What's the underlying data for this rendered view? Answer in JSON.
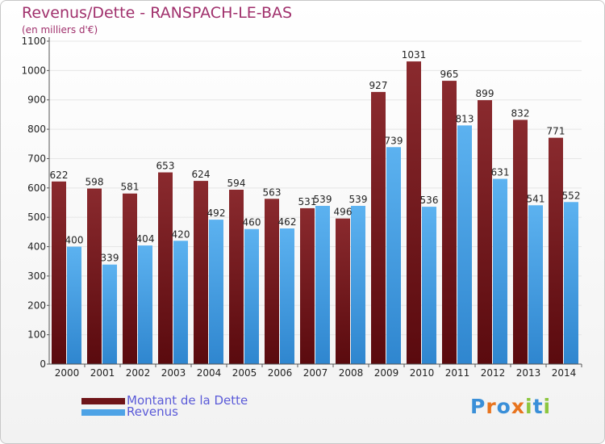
{
  "title": "Revenus/Dette - RANSPACH-LE-BAS",
  "subtitle": "(en milliers d'€)",
  "colors": {
    "dette": "#7a1b1f",
    "revenus": "#4ea3e6",
    "axis_text": "#222222",
    "grid": "#e6e6e6",
    "title": "#a0306c",
    "legend_text": "#5a5ad8"
  },
  "legend": [
    {
      "label": "Montant de la Dette",
      "color": "#6e1418"
    },
    {
      "label": "Revenus",
      "color": "#4ea3e6"
    }
  ],
  "logo": {
    "letters": [
      "P",
      "r",
      "o",
      "x",
      "i",
      "t",
      "i"
    ],
    "colors": [
      "#3a8fd8",
      "#e8741e",
      "#3a8fd8",
      "#e8741e",
      "#8cc63e",
      "#3a8fd8",
      "#8cc63e"
    ]
  },
  "chart_data": {
    "type": "bar",
    "categories": [
      "2000",
      "2001",
      "2002",
      "2003",
      "2004",
      "2005",
      "2006",
      "2007",
      "2008",
      "2009",
      "2010",
      "2011",
      "2012",
      "2013",
      "2014"
    ],
    "series": [
      {
        "name": "Montant de la Dette",
        "values": [
          622,
          598,
          581,
          653,
          624,
          594,
          563,
          531,
          496,
          927,
          1031,
          965,
          899,
          832,
          771
        ]
      },
      {
        "name": "Revenus",
        "values": [
          400,
          339,
          404,
          420,
          492,
          460,
          462,
          539,
          539,
          739,
          536,
          813,
          631,
          541,
          552
        ]
      }
    ],
    "y_ticks": [
      0,
      100,
      200,
      300,
      400,
      500,
      600,
      700,
      800,
      900,
      1000,
      1100
    ],
    "ylim": [
      0,
      1100
    ],
    "grid": true,
    "legend_position": "bottom-left"
  }
}
